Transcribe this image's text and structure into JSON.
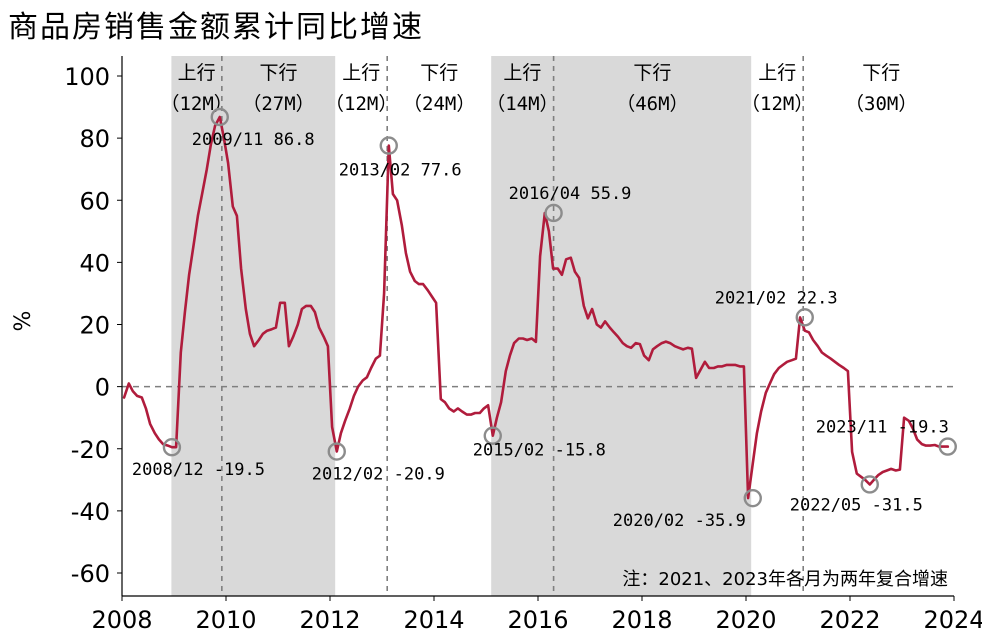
{
  "title": "商品房销售金额累计同比增速",
  "chart_data": {
    "type": "line",
    "title": "商品房销售金额累计同比增速",
    "ylabel": "%",
    "xlabel": "",
    "xlim": [
      2008.0,
      2024.1
    ],
    "ylim": [
      -65,
      100
    ],
    "x_ticks": [
      2008,
      2010,
      2012,
      2014,
      2016,
      2018,
      2020,
      2022,
      2024
    ],
    "y_ticks": [
      100,
      80,
      60,
      40,
      20,
      0,
      -20,
      -40,
      -60
    ],
    "grid": false,
    "color": "#b01c3c",
    "shaded_periods": [
      {
        "start": 2008.95,
        "end": 2009.92,
        "phase": "上行",
        "duration": "（12M）"
      },
      {
        "start": 2009.92,
        "end": 2012.1,
        "phase": "下行",
        "duration": "（27M）"
      },
      {
        "start": 2012.1,
        "end": 2013.1,
        "phase": "上行",
        "duration": "（12M）"
      },
      {
        "start": 2013.1,
        "end": 2015.1,
        "phase": "下行",
        "duration": "（24M）"
      },
      {
        "start": 2015.1,
        "end": 2016.3,
        "phase": "上行",
        "duration": "（14M）"
      },
      {
        "start": 2016.3,
        "end": 2020.1,
        "phase": "下行",
        "duration": "（46M）"
      },
      {
        "start": 2020.1,
        "end": 2021.1,
        "phase": "上行",
        "duration": "（12M）"
      },
      {
        "start": 2021.1,
        "end": 2024.1,
        "phase": "下行",
        "duration": "（30M）"
      }
    ],
    "shaded": [
      [
        2008.95,
        2012.1
      ],
      [
        2015.1,
        2020.1
      ]
    ],
    "dashed_lines_x": [
      2009.92,
      2013.1,
      2016.3,
      2021.1
    ],
    "annotations": [
      {
        "label": "2008/12  -19.5",
        "x": 2008.96,
        "y": -19.5
      },
      {
        "label": "2009/11  86.8",
        "x": 2009.88,
        "y": 86.8
      },
      {
        "label": "2012/02  -20.9",
        "x": 2012.13,
        "y": -20.9
      },
      {
        "label": "2013/02  77.6",
        "x": 2013.13,
        "y": 77.6
      },
      {
        "label": "2015/02  -15.8",
        "x": 2015.13,
        "y": -15.8
      },
      {
        "label": "2016/04  55.9",
        "x": 2016.3,
        "y": 55.9
      },
      {
        "label": "2020/02  -35.9",
        "x": 2020.13,
        "y": -35.9
      },
      {
        "label": "2021/02  22.3",
        "x": 2021.13,
        "y": 22.3
      },
      {
        "label": "2022/05  -31.5",
        "x": 2022.38,
        "y": -31.5
      },
      {
        "label": "2023/11  -19.3",
        "x": 2023.88,
        "y": -19.3
      }
    ],
    "note": "注：2021、2023年各月为两年复合增速",
    "series": [
      {
        "x": [
          2008.04,
          2008.13,
          2008.21,
          2008.29,
          2008.38,
          2008.46,
          2008.54,
          2008.63,
          2008.71,
          2008.79,
          2008.88,
          2008.96,
          2009.04,
          2009.13,
          2009.21,
          2009.29,
          2009.38,
          2009.46,
          2009.54,
          2009.63,
          2009.71,
          2009.79,
          2009.88,
          2009.96,
          2010.04,
          2010.13,
          2010.21,
          2010.29,
          2010.38,
          2010.46,
          2010.54,
          2010.63,
          2010.71,
          2010.79,
          2010.88,
          2010.96,
          2011.04,
          2011.13,
          2011.21,
          2011.29,
          2011.38,
          2011.46,
          2011.54,
          2011.63,
          2011.71,
          2011.79,
          2011.88,
          2011.96,
          2012.04,
          2012.13,
          2012.21,
          2012.29,
          2012.38,
          2012.46,
          2012.54,
          2012.63,
          2012.71,
          2012.79,
          2012.88,
          2012.96,
          2013.04,
          2013.13,
          2013.21,
          2013.29,
          2013.38,
          2013.46,
          2013.54,
          2013.63,
          2013.71,
          2013.79,
          2013.88,
          2013.96,
          2014.04,
          2014.13,
          2014.21,
          2014.29,
          2014.38,
          2014.46,
          2014.54,
          2014.63,
          2014.71,
          2014.79,
          2014.88,
          2014.96,
          2015.04,
          2015.13,
          2015.21,
          2015.29,
          2015.38,
          2015.46,
          2015.54,
          2015.63,
          2015.71,
          2015.79,
          2015.88,
          2015.96,
          2016.04,
          2016.13,
          2016.21,
          2016.29,
          2016.38,
          2016.46,
          2016.54,
          2016.63,
          2016.71,
          2016.79,
          2016.88,
          2016.96,
          2017.04,
          2017.13,
          2017.21,
          2017.29,
          2017.38,
          2017.46,
          2017.54,
          2017.63,
          2017.71,
          2017.79,
          2017.88,
          2017.96,
          2018.04,
          2018.13,
          2018.21,
          2018.29,
          2018.38,
          2018.46,
          2018.54,
          2018.63,
          2018.71,
          2018.79,
          2018.88,
          2018.96,
          2019.04,
          2019.13,
          2019.21,
          2019.29,
          2019.38,
          2019.46,
          2019.54,
          2019.63,
          2019.71,
          2019.79,
          2019.88,
          2019.96,
          2020.04,
          2020.13,
          2020.21,
          2020.29,
          2020.38,
          2020.46,
          2020.54,
          2020.63,
          2020.71,
          2020.79,
          2020.88,
          2020.96,
          2021.04,
          2021.13,
          2021.21,
          2021.29,
          2021.38,
          2021.46,
          2021.54,
          2021.63,
          2021.71,
          2021.79,
          2021.88,
          2021.96,
          2022.04,
          2022.13,
          2022.21,
          2022.29,
          2022.38,
          2022.46,
          2022.54,
          2022.63,
          2022.71,
          2022.79,
          2022.88,
          2022.96,
          2023.04,
          2023.13,
          2023.21,
          2023.29,
          2023.38,
          2023.46,
          2023.54,
          2023.63,
          2023.71,
          2023.79,
          2023.88
        ],
        "y": [
          -3.5,
          1,
          -1.5,
          -3,
          -3.5,
          -7,
          -12,
          -15,
          -17,
          -18.5,
          -19,
          -19.5,
          -19.5,
          11,
          24,
          36,
          46,
          55,
          62,
          70,
          78,
          84,
          86.8,
          80,
          72,
          58,
          55,
          38,
          25,
          17,
          13,
          15,
          17,
          18,
          18.5,
          19,
          27,
          27,
          13,
          16,
          20,
          25,
          26,
          26,
          24,
          19,
          16,
          13,
          -13,
          -20.9,
          -15,
          -11,
          -7,
          -3,
          0,
          2,
          3,
          6,
          9,
          10,
          30,
          77.6,
          62,
          60,
          52,
          43,
          37,
          34,
          33,
          33,
          31,
          29,
          27,
          -4,
          -5,
          -7,
          -8,
          -7,
          -8,
          -9,
          -9,
          -8.5,
          -8.5,
          -7,
          -6,
          -15.8,
          -10,
          -5,
          5,
          10,
          14,
          15.5,
          15.5,
          15,
          15.5,
          14.4,
          42,
          55.9,
          50,
          38,
          38,
          36,
          41,
          41.5,
          37,
          35,
          26,
          22,
          25,
          20,
          19,
          21,
          19,
          17.5,
          16,
          14,
          13,
          12.5,
          14,
          13.7,
          10,
          8.5,
          12,
          13,
          14,
          14.5,
          14,
          13,
          12.5,
          12,
          12.5,
          12.2,
          2.8,
          5.6,
          8,
          6,
          6,
          6.5,
          6.5,
          7,
          7,
          7,
          6.5,
          6.5,
          -35.9,
          -24.7,
          -15,
          -8,
          -2,
          1,
          4,
          6,
          7,
          8,
          8.5,
          9,
          22.3,
          18,
          17.5,
          15,
          13,
          11,
          10,
          9,
          8,
          7,
          6,
          5,
          -21,
          -28,
          -29,
          -30,
          -31.5,
          -30,
          -28.5,
          -27.5,
          -27,
          -26.5,
          -27,
          -26.7,
          -10,
          -11,
          -13.5,
          -17,
          -18.5,
          -19,
          -19,
          -18.8,
          -19.3,
          -19.3,
          -19.3
        ]
      }
    ]
  }
}
